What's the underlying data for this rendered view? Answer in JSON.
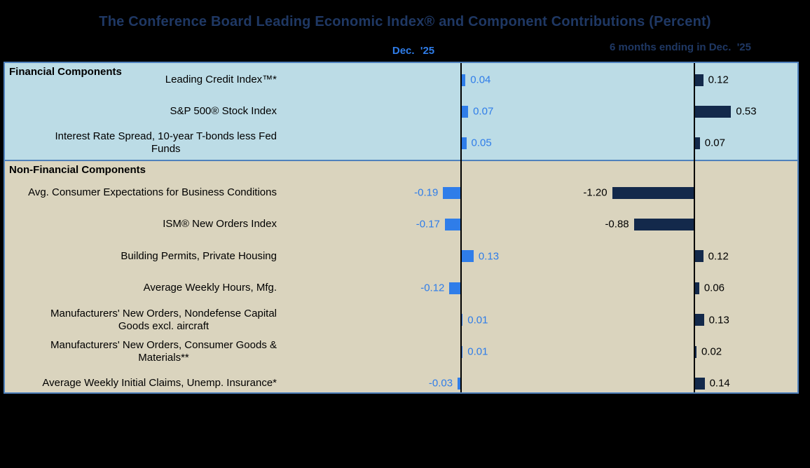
{
  "title": "The Conference Board Leading Economic Index® and Component Contributions (Percent)",
  "headers": {
    "dec": "Dec.  '25",
    "six_months": "6 months ending in Dec.  '25"
  },
  "sections": {
    "financial": "Financial Components",
    "nonfinancial": "Non-Financial Components"
  },
  "colors": {
    "background": "#000000",
    "title_text": "#1F3864",
    "dec_accent": "#2F7DE9",
    "six_month_bar": "#13294B",
    "financial_bg": "#BCDCE6",
    "nonfinancial_bg": "#DAD4BE",
    "panel_border": "#4F81BD",
    "axis_line": "#000000",
    "right_value_text": "#000000"
  },
  "chart_data": {
    "type": "bar",
    "orientation": "horizontal",
    "title": "The Conference Board Leading Economic Index® and Component Contributions (Percent)",
    "categories": [
      "Leading Credit Index™*",
      "S&P 500® Stock Index",
      "Interest Rate Spread, 10-year T-bonds less Fed\nFunds",
      "Avg. Consumer Expectations for Business Conditions",
      "ISM® New Orders Index",
      "Building Permits, Private Housing",
      "Average Weekly Hours, Mfg.",
      "Manufacturers' New Orders, Nondefense Capital\nGoods excl. aircraft",
      "Manufacturers' New Orders, Consumer Goods &\nMaterials**",
      "Average Weekly Initial Claims, Unemp. Insurance*"
    ],
    "series": [
      {
        "name": "Dec.  '25",
        "color": "#2F7DE9",
        "values": [
          0.04,
          0.07,
          0.05,
          -0.19,
          -0.17,
          0.13,
          -0.12,
          0.01,
          0.01,
          -0.03
        ]
      },
      {
        "name": "6 months ending in Dec.  '25",
        "color": "#13294B",
        "values": [
          0.12,
          0.53,
          0.07,
          -1.2,
          -0.88,
          0.12,
          0.06,
          0.13,
          0.02,
          0.14
        ]
      }
    ],
    "groups": [
      {
        "label": "Financial Components",
        "category_indices": [
          0,
          1,
          2
        ]
      },
      {
        "label": "Non-Financial Components",
        "category_indices": [
          3,
          4,
          5,
          6,
          7,
          8,
          9
        ]
      }
    ],
    "value_labels_shown": true,
    "gridlines": false,
    "legend_position": "top-column-headers"
  }
}
